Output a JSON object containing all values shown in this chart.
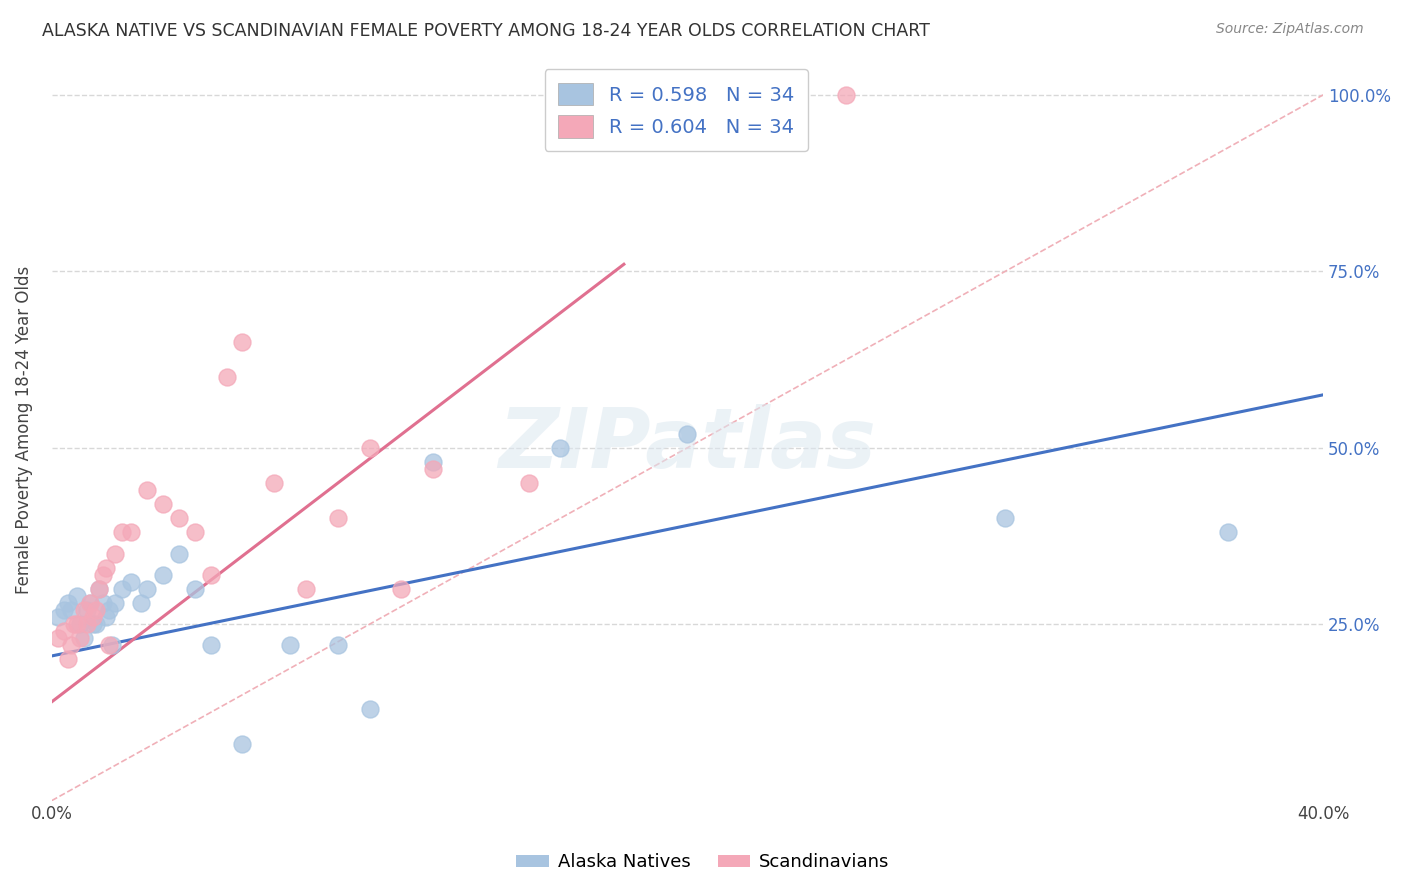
{
  "title": "ALASKA NATIVE VS SCANDINAVIAN FEMALE POVERTY AMONG 18-24 YEAR OLDS CORRELATION CHART",
  "source": "Source: ZipAtlas.com",
  "ylabel": "Female Poverty Among 18-24 Year Olds",
  "xlim": [
    0.0,
    0.4
  ],
  "ylim": [
    0.0,
    1.05
  ],
  "alaska_R": "0.598",
  "alaska_N": "34",
  "scand_R": "0.604",
  "scand_N": "34",
  "alaska_color": "#a8c4e0",
  "scand_color": "#f4a8b8",
  "alaska_line_color": "#4472c4",
  "scand_line_color": "#e07090",
  "diagonal_color": "#f0b0b8",
  "background_color": "#ffffff",
  "grid_color": "#d8d8d8",
  "legend_text_color": "#4472c4",
  "alaska_x": [
    0.002,
    0.004,
    0.005,
    0.006,
    0.008,
    0.009,
    0.01,
    0.011,
    0.012,
    0.013,
    0.014,
    0.015,
    0.016,
    0.017,
    0.018,
    0.019,
    0.02,
    0.022,
    0.025,
    0.028,
    0.03,
    0.035,
    0.04,
    0.045,
    0.05,
    0.06,
    0.075,
    0.09,
    0.1,
    0.12,
    0.16,
    0.2,
    0.3,
    0.37
  ],
  "alaska_y": [
    0.26,
    0.27,
    0.28,
    0.27,
    0.29,
    0.25,
    0.23,
    0.27,
    0.28,
    0.25,
    0.25,
    0.3,
    0.28,
    0.26,
    0.27,
    0.22,
    0.28,
    0.3,
    0.31,
    0.28,
    0.3,
    0.32,
    0.35,
    0.3,
    0.22,
    0.08,
    0.22,
    0.22,
    0.13,
    0.48,
    0.5,
    0.52,
    0.4,
    0.38
  ],
  "scand_x": [
    0.002,
    0.004,
    0.005,
    0.006,
    0.007,
    0.008,
    0.009,
    0.01,
    0.011,
    0.012,
    0.013,
    0.014,
    0.015,
    0.016,
    0.017,
    0.018,
    0.02,
    0.022,
    0.025,
    0.03,
    0.035,
    0.04,
    0.045,
    0.05,
    0.055,
    0.06,
    0.07,
    0.08,
    0.09,
    0.1,
    0.11,
    0.12,
    0.15,
    0.25
  ],
  "scand_y": [
    0.23,
    0.24,
    0.2,
    0.22,
    0.25,
    0.25,
    0.23,
    0.27,
    0.25,
    0.28,
    0.26,
    0.27,
    0.3,
    0.32,
    0.33,
    0.22,
    0.35,
    0.38,
    0.38,
    0.44,
    0.42,
    0.4,
    0.38,
    0.32,
    0.6,
    0.65,
    0.45,
    0.3,
    0.4,
    0.5,
    0.3,
    0.47,
    0.45,
    1.0
  ],
  "ak_line_x0": 0.0,
  "ak_line_y0": 0.205,
  "ak_line_x1": 0.4,
  "ak_line_y1": 0.575,
  "sc_line_x0": 0.0,
  "sc_line_y0": 0.14,
  "sc_line_x1": 0.18,
  "sc_line_y1": 0.76
}
